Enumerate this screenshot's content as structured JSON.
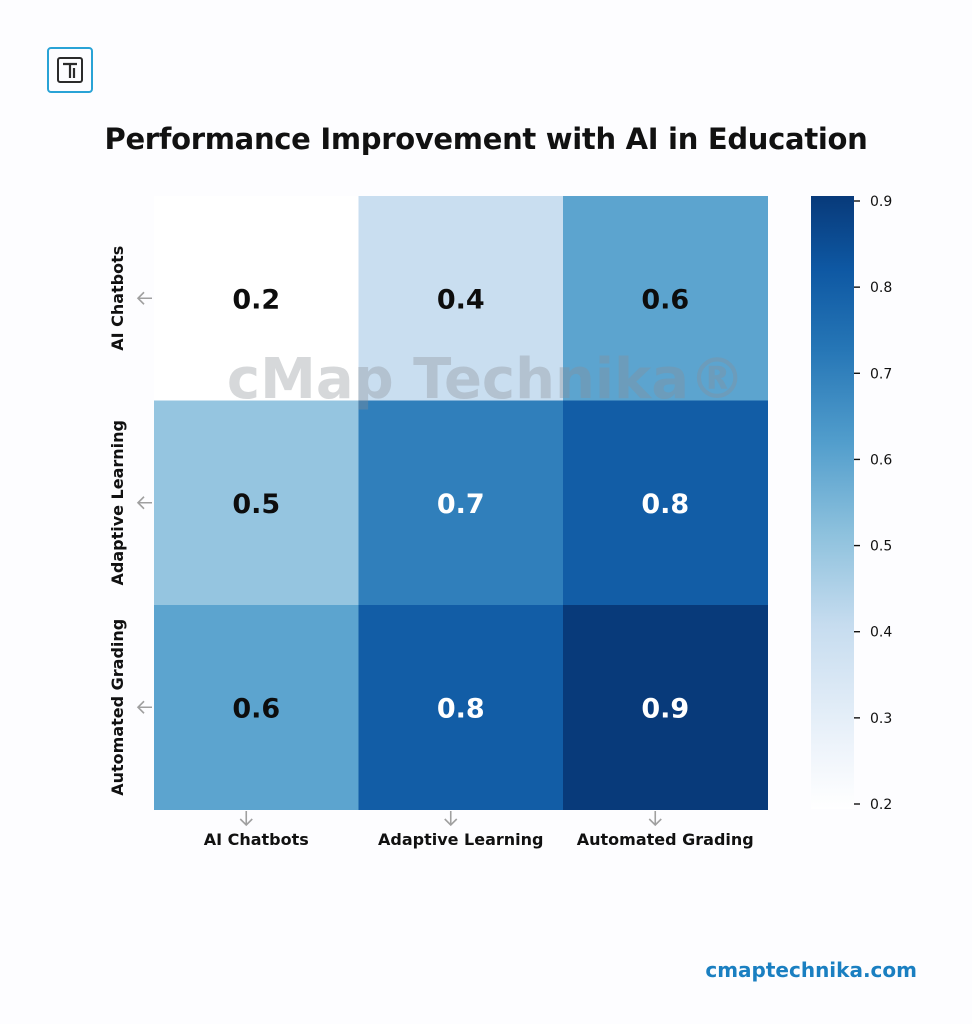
{
  "header": {
    "logo_icon": "cmap-technika-logo-icon",
    "title": "Performance Improvement with AI in Education"
  },
  "watermark": "cMap Technika®",
  "footer": {
    "site": "cmaptechnika.com"
  },
  "colors": {
    "accent": "#1a7fc1",
    "logo": "#29a3d6"
  },
  "chart_data": {
    "type": "heatmap",
    "title": "Performance Improvement with AI in Education",
    "x_categories": [
      "AI Chatbots",
      "Adaptive Learning",
      "Automated Grading"
    ],
    "y_categories": [
      "AI Chatbots",
      "Adaptive Learning",
      "Automated Grading"
    ],
    "values": [
      [
        0.2,
        0.4,
        0.6
      ],
      [
        0.5,
        0.7,
        0.8
      ],
      [
        0.6,
        0.8,
        0.9
      ]
    ],
    "value_labels": [
      [
        "0.2",
        "0.4",
        "0.6"
      ],
      [
        "0.5",
        "0.7",
        "0.8"
      ],
      [
        "0.6",
        "0.8",
        "0.9"
      ]
    ],
    "colormap": "Blues",
    "colorbar": {
      "range": [
        0.2,
        0.9
      ],
      "ticks": [
        0.2,
        0.3,
        0.4,
        0.5,
        0.6,
        0.7,
        0.8,
        0.9
      ],
      "tick_labels": [
        "0.2",
        "0.3",
        "0.4",
        "0.5",
        "0.6",
        "0.7",
        "0.8",
        "0.9"
      ]
    }
  }
}
